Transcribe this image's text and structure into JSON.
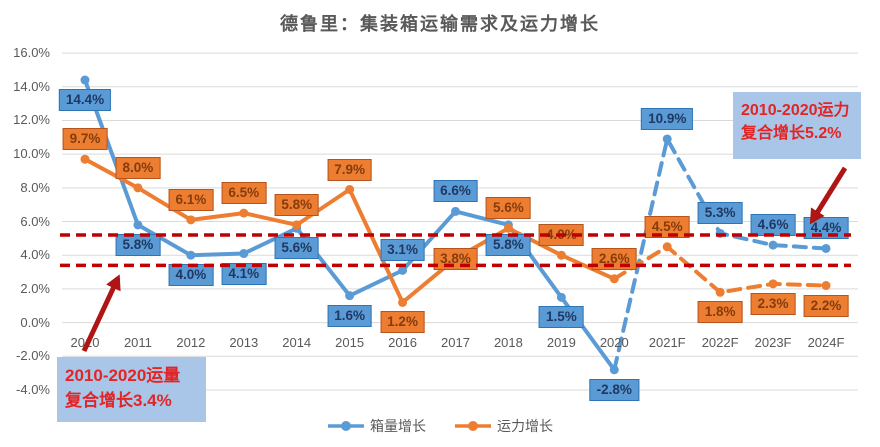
{
  "title": "德鲁里：集装箱运输需求及运力增长",
  "chart_data": {
    "type": "line",
    "categories": [
      "2010",
      "2011",
      "2012",
      "2013",
      "2014",
      "2015",
      "2016",
      "2017",
      "2018",
      "2019",
      "2020",
      "2021F",
      "2022F",
      "2023F",
      "2024F"
    ],
    "series": [
      {
        "id": "volume",
        "name": "箱量增长",
        "color": "#5B9BD5",
        "label_border": "#2E75B6",
        "label_text": "#1F3864",
        "values": [
          14.4,
          5.8,
          4.0,
          4.1,
          5.6,
          1.6,
          3.1,
          6.6,
          5.8,
          1.5,
          -2.8,
          10.9,
          5.3,
          4.6,
          4.4
        ],
        "label_pos": [
          "below",
          "below",
          "below",
          "below",
          "below",
          "below",
          "above",
          "above",
          "below",
          "below",
          "below",
          "above",
          "above",
          "above",
          "above"
        ],
        "forecast_start_index": 10
      },
      {
        "id": "capacity",
        "name": "运力增长",
        "color": "#ED7D31",
        "label_border": "#B5551D",
        "label_text": "#843C0C",
        "values": [
          9.7,
          8.0,
          6.1,
          6.5,
          5.8,
          7.9,
          1.2,
          3.8,
          5.6,
          4.0,
          2.6,
          4.5,
          1.8,
          2.3,
          2.2
        ],
        "label_pos": [
          "above",
          "above",
          "above",
          "above",
          "above",
          "above",
          "below",
          "center",
          "above",
          "above",
          "above",
          "above",
          "below",
          "below",
          "below"
        ],
        "forecast_start_index": 10
      }
    ],
    "ylim": [
      -4,
      16
    ],
    "ytick_step": 2,
    "ytick_labels": [
      "16.0%",
      "14.0%",
      "12.0%",
      "10.0%",
      "8.0%",
      "6.0%",
      "4.0%",
      "2.0%",
      "0.0%",
      "-2.0%",
      "-4.0%"
    ],
    "grid": true,
    "legend_position": "bottom",
    "reference_lines": [
      {
        "value": 5.2,
        "style": "dashed"
      },
      {
        "value": 3.4,
        "style": "dashed"
      }
    ]
  },
  "annotations": {
    "capacity": {
      "line1": "2010-2020运力",
      "line2": "复合增长5.2%"
    },
    "volume": {
      "line1": "2010-2020运量",
      "line2": "复合增长3.4%"
    }
  },
  "colors": {
    "grid": "#DADADA",
    "axis_text": "#595959",
    "title_text": "#595959",
    "reference_red": "#C00000",
    "arrow_red": "#B01515",
    "annotation_bg": "#A9C6E8",
    "annotation_text": "#E32424"
  }
}
